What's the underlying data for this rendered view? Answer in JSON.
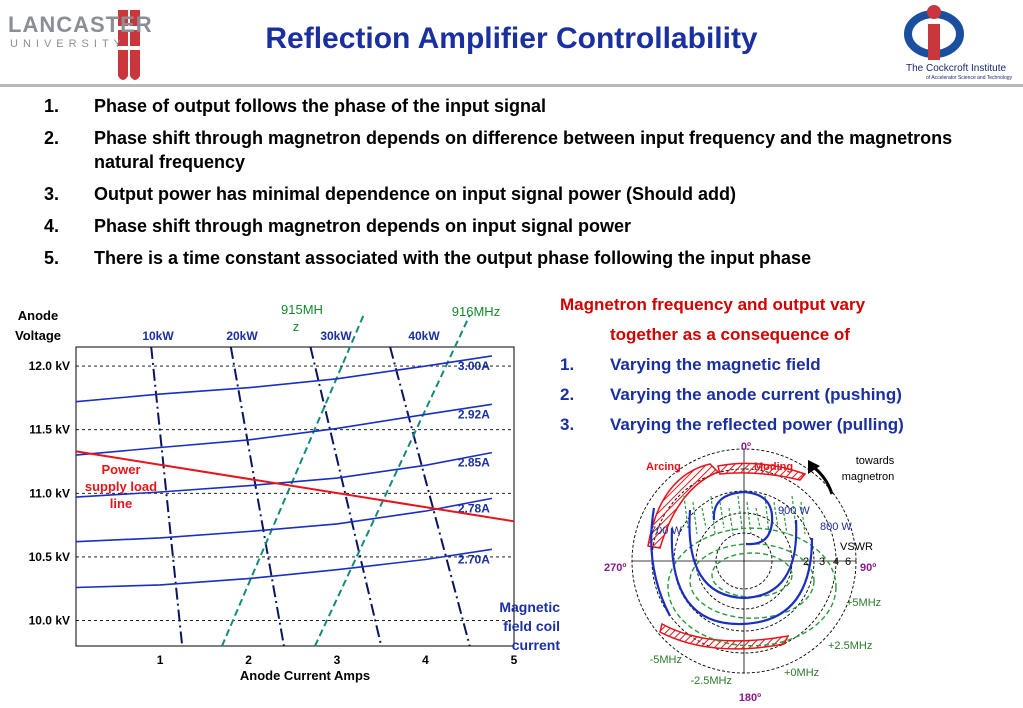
{
  "header": {
    "title": "Reflection Amplifier Controllability",
    "lancaster_logo": {
      "line1": "LANCASTER",
      "line2": "UNIVERSITY"
    },
    "cockcroft_logo": {
      "line1": "The Cockcroft Institute",
      "line2": "of Accelerator Science and Technology"
    }
  },
  "points": [
    {
      "num": "1.",
      "text": "Phase of output follows the phase of the input signal"
    },
    {
      "num": "2.",
      "text": "Phase shift through magnetron depends on difference between input frequency and the magnetrons natural frequency"
    },
    {
      "num": "3.",
      "text": "Output power has minimal dependence on input signal power (Should add)"
    },
    {
      "num": "4.",
      "text": "Phase shift through magnetron depends on input signal power"
    },
    {
      "num": "5.",
      "text": "There is a time constant associated with the output phase following the input phase"
    }
  ],
  "right_text": {
    "line1": "Magnetron frequency and output vary",
    "line2": "together as a consequence of",
    "items": [
      {
        "num": "1.",
        "text": "Varying the magnetic field"
      },
      {
        "num": "2.",
        "text": "Varying the anode current (pushing)"
      },
      {
        "num": "3.",
        "text": "Varying the reflected power (pulling)"
      }
    ]
  },
  "chart_data": [
    {
      "type": "line",
      "ylabel": "Anode Voltage",
      "xlabel": "Anode Current Amps",
      "x_ticks": [
        "1",
        "2",
        "3",
        "4",
        "5"
      ],
      "y_ticks": [
        "12.0 kV",
        "11.5 kV",
        "11.0 kV",
        "10.5 kV",
        "10.0 kV"
      ],
      "xlim": [
        0.05,
        5
      ],
      "ylim": [
        9.8,
        12.15
      ],
      "magnetic_field_curves": [
        {
          "name": "3.00A",
          "x": [
            0.05,
            1.0,
            2.0,
            3.0,
            4.0,
            4.75
          ],
          "y": [
            11.72,
            11.78,
            11.83,
            11.9,
            12.0,
            12.08
          ]
        },
        {
          "name": "2.92A",
          "x": [
            0.05,
            1.0,
            2.0,
            3.0,
            4.0,
            4.75
          ],
          "y": [
            11.3,
            11.36,
            11.42,
            11.51,
            11.62,
            11.7
          ]
        },
        {
          "name": "2.85A",
          "x": [
            0.05,
            1.0,
            2.0,
            3.0,
            4.0,
            4.75
          ],
          "y": [
            10.97,
            11.01,
            11.06,
            11.12,
            11.22,
            11.32
          ]
        },
        {
          "name": "2.78A",
          "x": [
            0.05,
            1.0,
            2.0,
            3.0,
            4.0,
            4.75
          ],
          "y": [
            10.62,
            10.65,
            10.7,
            10.76,
            10.86,
            10.96
          ]
        },
        {
          "name": "2.70A",
          "x": [
            0.05,
            1.0,
            2.0,
            3.0,
            4.0,
            4.75
          ],
          "y": [
            10.26,
            10.28,
            10.33,
            10.4,
            10.48,
            10.56
          ]
        }
      ],
      "power_contours": [
        {
          "name": "10kW",
          "x": [
            0.9,
            1.25
          ],
          "y": [
            12.15,
            9.8
          ]
        },
        {
          "name": "20kW",
          "x": [
            1.8,
            2.4
          ],
          "y": [
            12.15,
            9.8
          ]
        },
        {
          "name": "30kW",
          "x": [
            2.7,
            3.5
          ],
          "y": [
            12.15,
            9.8
          ]
        },
        {
          "name": "40kW",
          "x": [
            3.6,
            4.5
          ],
          "y": [
            12.15,
            9.8
          ]
        }
      ],
      "frequency_lines": [
        {
          "name": "915MHz",
          "x": [
            1.7,
            3.3
          ],
          "y": [
            9.8,
            12.4
          ]
        },
        {
          "name": "916MHz",
          "x": [
            2.75,
            4.5
          ],
          "y": [
            9.8,
            12.4
          ]
        }
      ],
      "load_line": {
        "name": "Power supply load line",
        "x": [
          0.05,
          5.0
        ],
        "y": [
          11.33,
          10.78
        ]
      },
      "side_label": "Magnetic field coil current",
      "grid": true
    },
    {
      "type": "polar",
      "angle_labels": [
        "0º",
        "90º",
        "180º",
        "270º"
      ],
      "vswr_label": "VSWR",
      "vswr_ticks": [
        "2",
        "3",
        "4",
        "6"
      ],
      "power_labels": [
        "900 W",
        "800 W",
        "700 W"
      ],
      "freq_labels": [
        "+5MHz",
        "+2.5MHz",
        "+0MHz",
        "-2.5MHz",
        "-5MHz"
      ],
      "region_labels": [
        "Arcing",
        "Moding"
      ],
      "annotation": "towards magnetron"
    }
  ]
}
